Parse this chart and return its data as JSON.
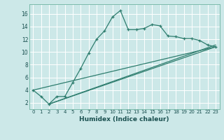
{
  "title": "",
  "xlabel": "Humidex (Indice chaleur)",
  "background_color": "#cce8e8",
  "plot_bg_color": "#cce8e8",
  "line_color": "#2e7d6e",
  "xlim": [
    -0.5,
    23.5
  ],
  "ylim": [
    1.0,
    17.5
  ],
  "yticks": [
    2,
    4,
    6,
    8,
    10,
    12,
    14,
    16
  ],
  "xticks": [
    0,
    1,
    2,
    3,
    4,
    5,
    6,
    7,
    8,
    9,
    10,
    11,
    12,
    13,
    14,
    15,
    16,
    17,
    18,
    19,
    20,
    21,
    22,
    23
  ],
  "xtick_labels": [
    "0",
    "1",
    "2",
    "3",
    "4",
    "5",
    "6",
    "7",
    "8",
    "9",
    "10",
    "11",
    "12",
    "13",
    "14",
    "15",
    "16",
    "17",
    "18",
    "19",
    "20",
    "21",
    "22",
    "23"
  ],
  "series": [
    [
      0,
      4.0
    ],
    [
      1,
      3.0
    ],
    [
      2,
      1.8
    ],
    [
      3,
      3.0
    ],
    [
      4,
      3.0
    ],
    [
      5,
      5.2
    ],
    [
      6,
      7.4
    ],
    [
      7,
      9.8
    ],
    [
      8,
      12.0
    ],
    [
      9,
      13.3
    ],
    [
      10,
      15.5
    ],
    [
      11,
      16.5
    ],
    [
      12,
      13.5
    ],
    [
      13,
      13.5
    ],
    [
      14,
      13.7
    ],
    [
      15,
      14.3
    ],
    [
      16,
      14.1
    ],
    [
      17,
      12.5
    ],
    [
      18,
      12.4
    ],
    [
      19,
      12.1
    ],
    [
      20,
      12.1
    ],
    [
      21,
      11.8
    ],
    [
      22,
      11.1
    ],
    [
      23,
      10.8
    ]
  ],
  "line2": [
    [
      0,
      4.0
    ],
    [
      23,
      10.8
    ]
  ],
  "line3": [
    [
      2,
      1.8
    ],
    [
      23,
      10.8
    ]
  ],
  "line4": [
    [
      2,
      1.8
    ],
    [
      23,
      11.1
    ]
  ]
}
